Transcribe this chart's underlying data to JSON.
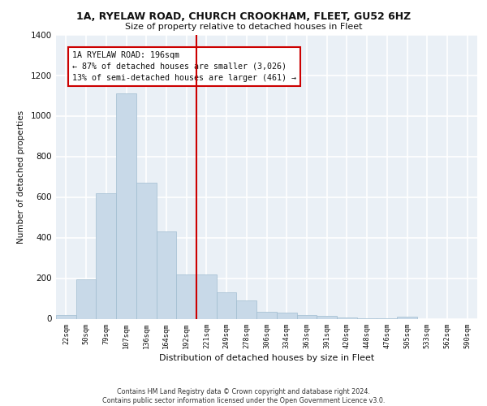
{
  "title1": "1A, RYELAW ROAD, CHURCH CROOKHAM, FLEET, GU52 6HZ",
  "title2": "Size of property relative to detached houses in Fleet",
  "xlabel": "Distribution of detached houses by size in Fleet",
  "ylabel": "Number of detached properties",
  "categories": [
    "22sqm",
    "50sqm",
    "79sqm",
    "107sqm",
    "136sqm",
    "164sqm",
    "192sqm",
    "221sqm",
    "249sqm",
    "278sqm",
    "306sqm",
    "334sqm",
    "363sqm",
    "391sqm",
    "420sqm",
    "448sqm",
    "476sqm",
    "505sqm",
    "533sqm",
    "562sqm",
    "590sqm"
  ],
  "values": [
    18,
    193,
    618,
    1110,
    670,
    430,
    220,
    220,
    130,
    90,
    35,
    30,
    18,
    14,
    8,
    4,
    2,
    12,
    0,
    0,
    0
  ],
  "bar_color": "#c8d9e8",
  "bar_edge_color": "#a0bcd0",
  "annotation_text": "1A RYELAW ROAD: 196sqm\n← 87% of detached houses are smaller (3,026)\n13% of semi-detached houses are larger (461) →",
  "annotation_box_color": "#ffffff",
  "annotation_box_edge": "#cc0000",
  "line_color": "#cc0000",
  "ylim": [
    0,
    1400
  ],
  "yticks": [
    0,
    200,
    400,
    600,
    800,
    1000,
    1200,
    1400
  ],
  "bg_color": "#eaf0f6",
  "grid_color": "#ffffff",
  "footer1": "Contains HM Land Registry data © Crown copyright and database right 2024.",
  "footer2": "Contains public sector information licensed under the Open Government Licence v3.0."
}
